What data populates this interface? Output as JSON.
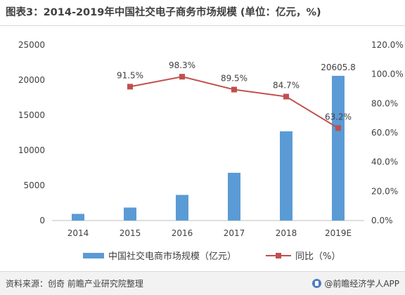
{
  "title": "图表3：2014-2019年中国社交电子商务市场规模 (单位：亿元，%)",
  "chart_data": {
    "type": "bar",
    "categories": [
      "2014",
      "2015",
      "2016",
      "2017",
      "2018",
      "2019E"
    ],
    "series": [
      {
        "name": "中国社交电商市场规模（亿元）",
        "type": "bar",
        "axis": "left",
        "color": "#5b9bd5",
        "values": [
          950,
          1850,
          3650,
          6800,
          12700,
          20605.8
        ],
        "data_labels": {
          "5": "20605.8"
        }
      },
      {
        "name": "同比（%）",
        "type": "line",
        "axis": "right",
        "color": "#c0504d",
        "values": [
          null,
          91.5,
          98.3,
          89.5,
          84.7,
          63.2
        ],
        "data_labels": [
          "",
          "91.5%",
          "98.3%",
          "89.5%",
          "84.7%",
          "63.2%"
        ]
      }
    ],
    "y_left": {
      "min": 0,
      "max": 25000,
      "ticks": [
        "0",
        "5000",
        "10000",
        "15000",
        "20000",
        "25000"
      ]
    },
    "y_right": {
      "min": 0,
      "max": 120,
      "ticks": [
        "0.0%",
        "20.0%",
        "40.0%",
        "60.0%",
        "80.0%",
        "100.0%",
        "120.0%"
      ]
    },
    "grid": false,
    "legend_position": "bottom"
  },
  "legend": {
    "bar_label": "中国社交电商市场规模（亿元）",
    "line_label": "同比（%）"
  },
  "footer": {
    "source": "资料来源：创奇 前瞻产业研究院整理",
    "brand": "@前瞻经济学人APP"
  }
}
